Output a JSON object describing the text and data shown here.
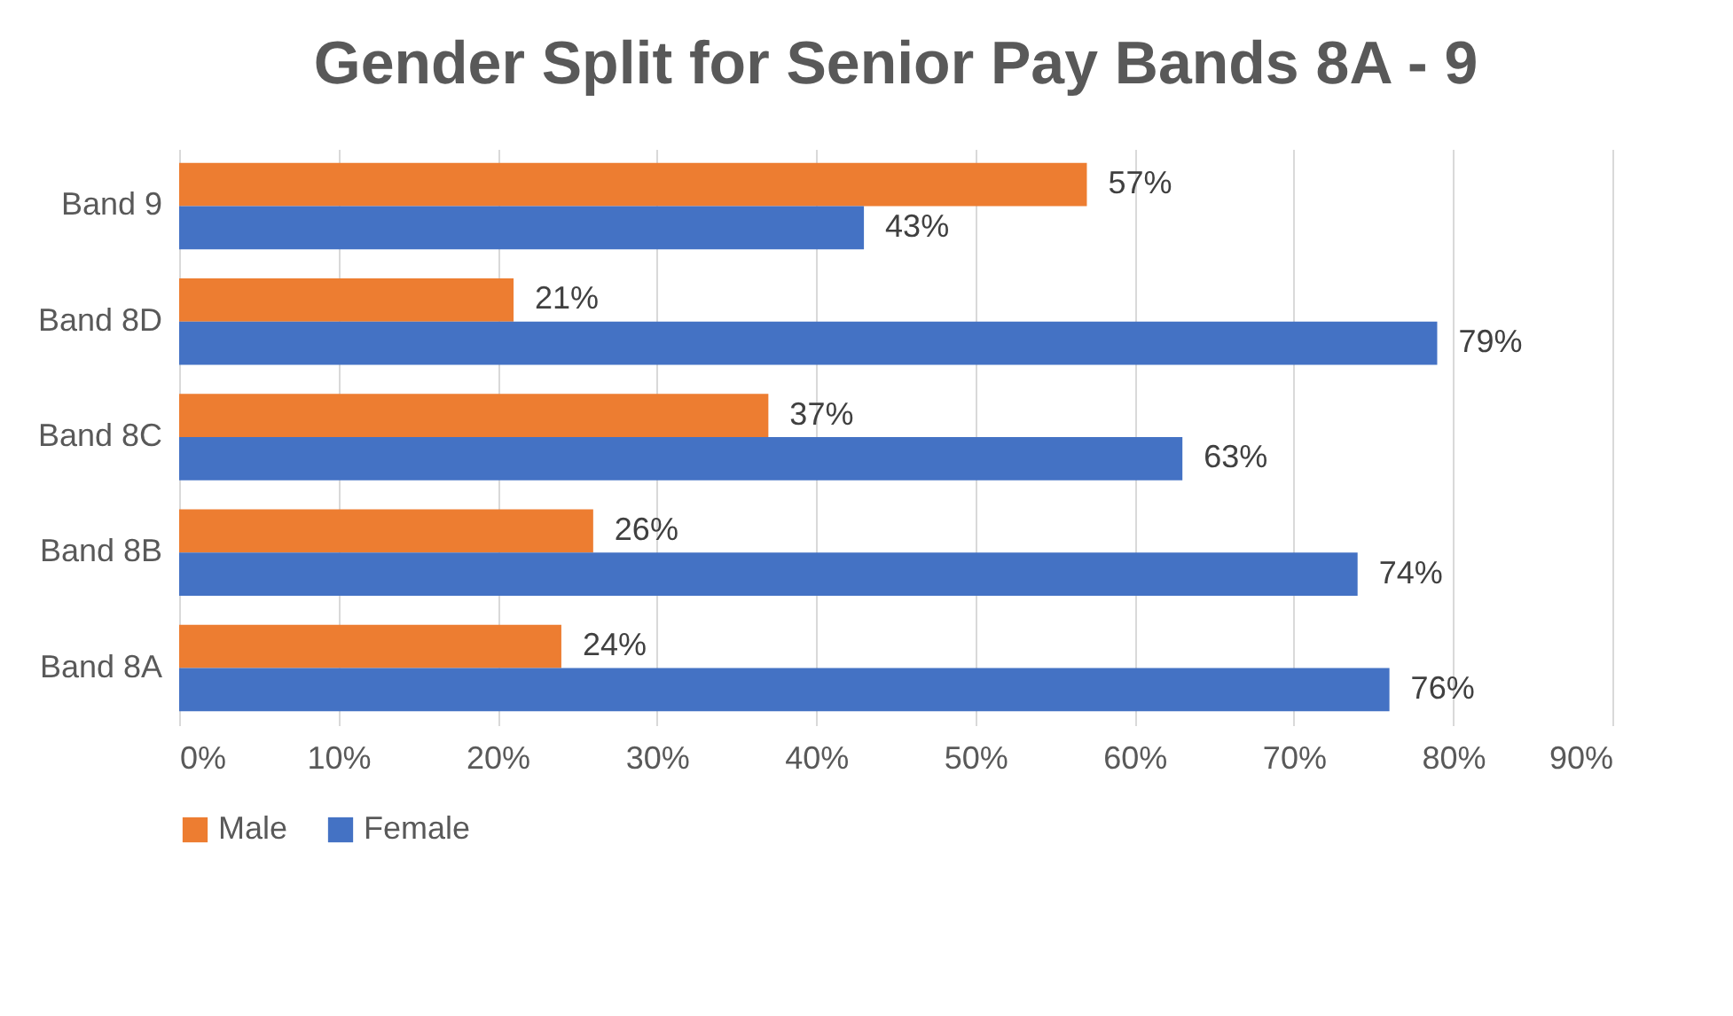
{
  "chart_data": {
    "type": "bar",
    "orientation": "horizontal",
    "title": "Gender Split for Senior Pay Bands 8A - 9",
    "categories": [
      "Band 9",
      "Band 8D",
      "Band 8C",
      "Band 8B",
      "Band 8A"
    ],
    "series": [
      {
        "name": "Male",
        "color": "#ed7d31",
        "values": [
          57,
          21,
          37,
          26,
          24
        ],
        "value_labels": [
          "57%",
          "21%",
          "37%",
          "26%",
          "24%"
        ]
      },
      {
        "name": "Female",
        "color": "#4472c4",
        "values": [
          43,
          79,
          63,
          74,
          76
        ],
        "value_labels": [
          "43%",
          "79%",
          "63%",
          "74%",
          "76%"
        ]
      }
    ],
    "xlim": [
      0,
      90
    ],
    "xticks": [
      {
        "value": 0,
        "label": "0%"
      },
      {
        "value": 10,
        "label": "10%"
      },
      {
        "value": 20,
        "label": "20%"
      },
      {
        "value": 30,
        "label": "30%"
      },
      {
        "value": 40,
        "label": "40%"
      },
      {
        "value": 50,
        "label": "50%"
      },
      {
        "value": 60,
        "label": "60%"
      },
      {
        "value": 70,
        "label": "70%"
      },
      {
        "value": 80,
        "label": "80%"
      },
      {
        "value": 90,
        "label": "90%"
      }
    ],
    "grid": "x",
    "legend": "bottom"
  }
}
